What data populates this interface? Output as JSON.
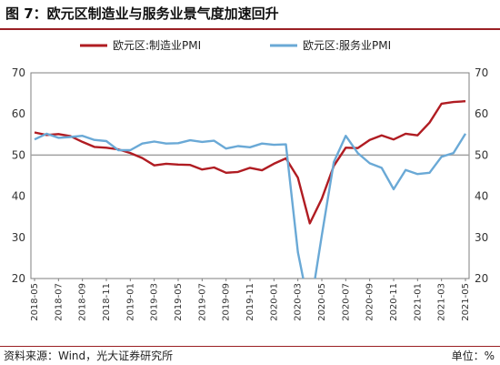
{
  "title": "图 7：欧元区制造业与服务业景气度加速回升",
  "footer": {
    "source": "资料来源：Wind，光大证券研究所",
    "unit": "单位：%"
  },
  "colors": {
    "accent": "#9a1f24",
    "reference_line": "#a0a0a0"
  },
  "chart_data": {
    "type": "line",
    "x": [
      "2018-05",
      "2018-06",
      "2018-07",
      "2018-08",
      "2018-09",
      "2018-10",
      "2018-11",
      "2018-12",
      "2019-01",
      "2019-02",
      "2019-03",
      "2019-04",
      "2019-05",
      "2019-06",
      "2019-07",
      "2019-08",
      "2019-09",
      "2019-10",
      "2019-11",
      "2019-12",
      "2020-01",
      "2020-02",
      "2020-03",
      "2020-04",
      "2020-05",
      "2020-06",
      "2020-07",
      "2020-08",
      "2020-09",
      "2020-10",
      "2020-11",
      "2020-12",
      "2021-01",
      "2021-02",
      "2021-03",
      "2021-04",
      "2021-05"
    ],
    "x_tick_labels": [
      "2018-05",
      "2018-07",
      "2018-09",
      "2018-11",
      "2019-01",
      "2019-03",
      "2019-05",
      "2019-07",
      "2019-09",
      "2019-11",
      "2020-01",
      "2020-03",
      "2020-05",
      "2020-07",
      "2020-09",
      "2020-11",
      "2021-01",
      "2021-03",
      "2021-05"
    ],
    "ylim": [
      20,
      70
    ],
    "y_ticks": [
      20,
      30,
      40,
      50,
      60,
      70
    ],
    "reference_line": 50,
    "legend_position": "top",
    "series": [
      {
        "name": "欧元区:制造业PMI",
        "color": "#b01c22",
        "values": [
          55.5,
          54.9,
          55.1,
          54.6,
          53.2,
          52.0,
          51.8,
          51.4,
          50.5,
          49.3,
          47.5,
          47.9,
          47.7,
          47.6,
          46.5,
          47.0,
          45.7,
          45.9,
          46.9,
          46.3,
          47.9,
          49.2,
          44.5,
          33.4,
          39.4,
          47.4,
          51.8,
          51.7,
          53.7,
          54.8,
          53.8,
          55.2,
          54.8,
          57.9,
          62.5,
          62.9,
          63.1
        ]
      },
      {
        "name": "欧元区:服务业PMI",
        "color": "#6aa9d6",
        "values": [
          53.8,
          55.2,
          54.2,
          54.4,
          54.7,
          53.7,
          53.4,
          51.2,
          51.2,
          52.8,
          53.3,
          52.8,
          52.9,
          53.6,
          53.2,
          53.5,
          51.6,
          52.2,
          51.9,
          52.8,
          52.5,
          52.6,
          26.4,
          12.0,
          30.5,
          48.3,
          54.7,
          50.5,
          48.0,
          46.9,
          41.7,
          46.4,
          45.4,
          45.7,
          49.6,
          50.5,
          55.2
        ]
      }
    ]
  }
}
